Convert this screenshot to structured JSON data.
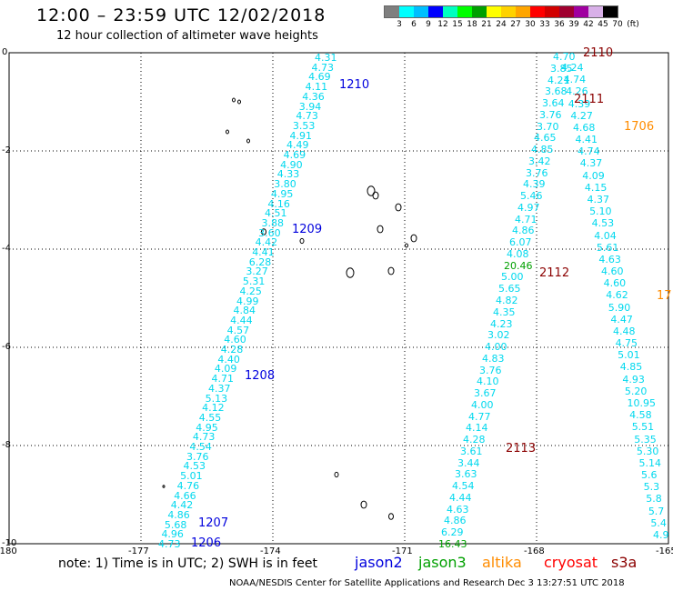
{
  "header": {
    "title": "12:00 – 23:59 UTC 12/02/2018",
    "subtitle": "12 hour collection of altimeter wave heights"
  },
  "scale": {
    "unit": "(ft)",
    "colors": [
      "#7f7f7f",
      "#00ffff",
      "#00bfff",
      "#0000ff",
      "#00ffc0",
      "#00ff00",
      "#00a000",
      "#ffff00",
      "#ffd200",
      "#ffa500",
      "#ff0000",
      "#d10000",
      "#a00030",
      "#a000a0",
      "#d8b0e8",
      "#000000"
    ],
    "ticks": [
      "3",
      "6",
      "9",
      "12",
      "15",
      "18",
      "21",
      "24",
      "27",
      "30",
      "33",
      "36",
      "39",
      "42",
      "45",
      "70"
    ]
  },
  "map": {
    "lon_range": [
      -180,
      -165
    ],
    "lat_range": [
      -10,
      0
    ],
    "x_ticks": [
      "-180",
      "-177",
      "-174",
      "-171",
      "-168",
      "-165"
    ],
    "y_ticks": [
      "0",
      "-2",
      "-4",
      "-6",
      "-8",
      "-10"
    ]
  },
  "tracks": [
    {
      "values": [
        "4.31",
        "4.73",
        "4.69",
        "4.11",
        "4.36",
        "3.94",
        "4.73",
        "3.53",
        "4.91",
        "4.49",
        "4.69",
        "4.90",
        "4.33",
        "3.80",
        "4.95",
        "4.16",
        "4.51",
        "3.88",
        "3.60",
        "4.42",
        "4.41",
        "6.28",
        "3.27",
        "5.31",
        "4.25",
        "4.99",
        "4.84",
        "4.44",
        "4.57",
        "4.60",
        "4.28",
        "4.40",
        "4.09",
        "4.71",
        "4.37",
        "5.13",
        "4.12",
        "4.55",
        "4.95",
        "4.73",
        "4.54",
        "3.76",
        "4.53",
        "5.01",
        "4.76",
        "4.66",
        "4.42",
        "4.86",
        "5.68",
        "4.96",
        "4.73"
      ]
    },
    {
      "values": [
        "4.70",
        "3.85",
        "4.21",
        "3.68",
        "3.64",
        "3.76",
        "3.70",
        "4.65",
        "4.85",
        "3.42",
        "3.76",
        "4.39",
        "5.46",
        "4.97",
        "4.71",
        "4.86",
        "6.07",
        "4.08",
        "20.46",
        "5.00",
        "5.65",
        "4.82",
        "4.35",
        "4.23",
        "3.02",
        "4.00",
        "4.83",
        "3.76",
        "4.10",
        "3.67",
        "4.00",
        "4.77",
        "4.14",
        "4.28",
        "3.61",
        "3.44",
        "3.63",
        "4.54",
        "4.44",
        "4.63",
        "4.86",
        "6.29",
        "16.43"
      ]
    },
    {
      "values": [
        "4.24",
        "4.74",
        "4.26",
        "4.39",
        "4.27",
        "4.68",
        "4.41",
        "4.74",
        "4.37",
        "4.09",
        "4.15",
        "4.37",
        "5.10",
        "4.53",
        "4.04",
        "5.61",
        "4.63",
        "4.60",
        "4.60",
        "4.62",
        "5.90",
        "4.47",
        "4.48",
        "4.75",
        "5.01",
        "4.85",
        "4.93",
        "5.20",
        "10.95",
        "4.58",
        "5.51",
        "5.35",
        "5.30",
        "5.14",
        "5.6",
        "5.3",
        "5.8",
        "5.7",
        "5.4",
        "4.9"
      ]
    }
  ],
  "pass_labels": [
    {
      "text": "1210",
      "color": "blue"
    },
    {
      "text": "1209",
      "color": "blue"
    },
    {
      "text": "1208",
      "color": "blue"
    },
    {
      "text": "1207",
      "color": "blue"
    },
    {
      "text": "1206",
      "color": "blue"
    },
    {
      "text": "2110",
      "color": "dred"
    },
    {
      "text": "2111",
      "color": "dred"
    },
    {
      "text": "2112",
      "color": "dred"
    },
    {
      "text": "2113",
      "color": "dred"
    },
    {
      "text": "1706",
      "color": "orng"
    },
    {
      "text": "17",
      "color": "orng"
    }
  ],
  "footer": {
    "note": "note: 1) Time is in UTC; 2) SWH is in feet",
    "legend": [
      {
        "label": "jason2",
        "color": "#0000dd"
      },
      {
        "label": "jason3",
        "color": "#00a000"
      },
      {
        "label": "altika",
        "color": "#ff8c00"
      },
      {
        "label": "cryosat",
        "color": "#ff0000"
      },
      {
        "label": "s3a",
        "color": "#8b0000"
      }
    ],
    "credit": "NOAA/NESDIS Center for Satellite Applications and Research   Dec  3 13:27:51 UTC 2018"
  }
}
